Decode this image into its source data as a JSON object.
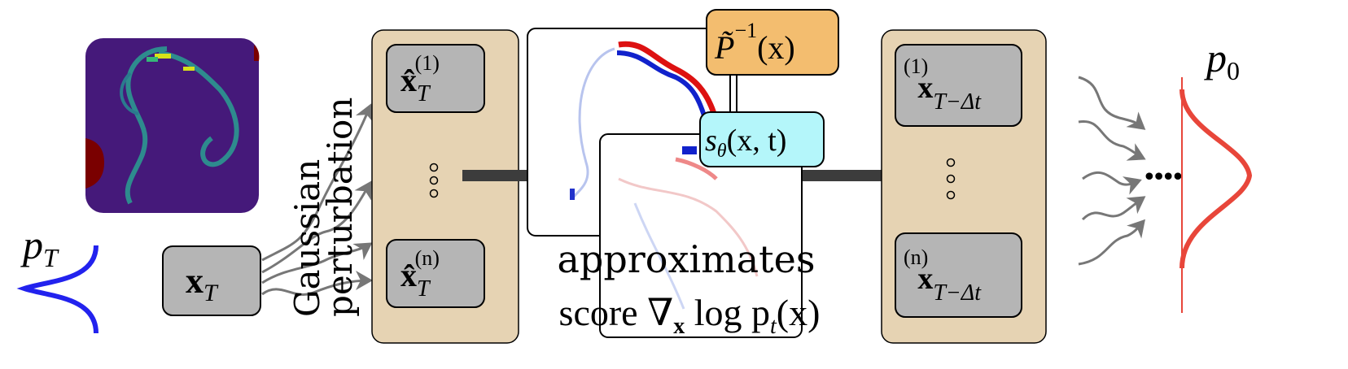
{
  "colors": {
    "panel": "#e6d3b3",
    "node": "#b5b5b5",
    "orange_box": "#f3bd6f",
    "cyan_box": "#b4f6fa",
    "prior_curve": "#2222ee",
    "data_curve": "#e8463a",
    "arrow": "#3c3c3c",
    "heatmap_bg": "#45197a"
  },
  "labels": {
    "p_T": {
      "base": "p",
      "sub": "T"
    },
    "p_0": {
      "base": "p",
      "sub": "0"
    },
    "x_T": {
      "base": "x",
      "sub": "T"
    },
    "perturb_line1": "Gaussian",
    "perturb_line2": "perturbation",
    "xhat_1": {
      "base": "x̂",
      "sup": "(1)",
      "sub": "T"
    },
    "xhat_n": {
      "base": "x̂",
      "sup": "(n)",
      "sub": "T"
    },
    "inv_precond": {
      "base": "P̃",
      "sup": "−1",
      "arg": "(x)"
    },
    "score_net": {
      "base": "s",
      "sub": "θ",
      "arg": "(x, t)"
    },
    "approx_line1": "approximates",
    "approx_line2_prefix": "score ∇",
    "approx_line2_sub": "x",
    "approx_line2_suffix": " log p",
    "approx_line2_sub2": "t",
    "approx_line2_end": "(x)",
    "x_next_1": {
      "base": "x",
      "sup": "(1)",
      "sub": "T−Δt"
    },
    "x_next_n": {
      "base": "x",
      "sup": "(n)",
      "sub": "T−Δt"
    },
    "ellipsis": "••••"
  },
  "icons": [
    "vertical-ellipsis-icon",
    "wavy-arrow-icon",
    "thick-arrow-icon"
  ]
}
